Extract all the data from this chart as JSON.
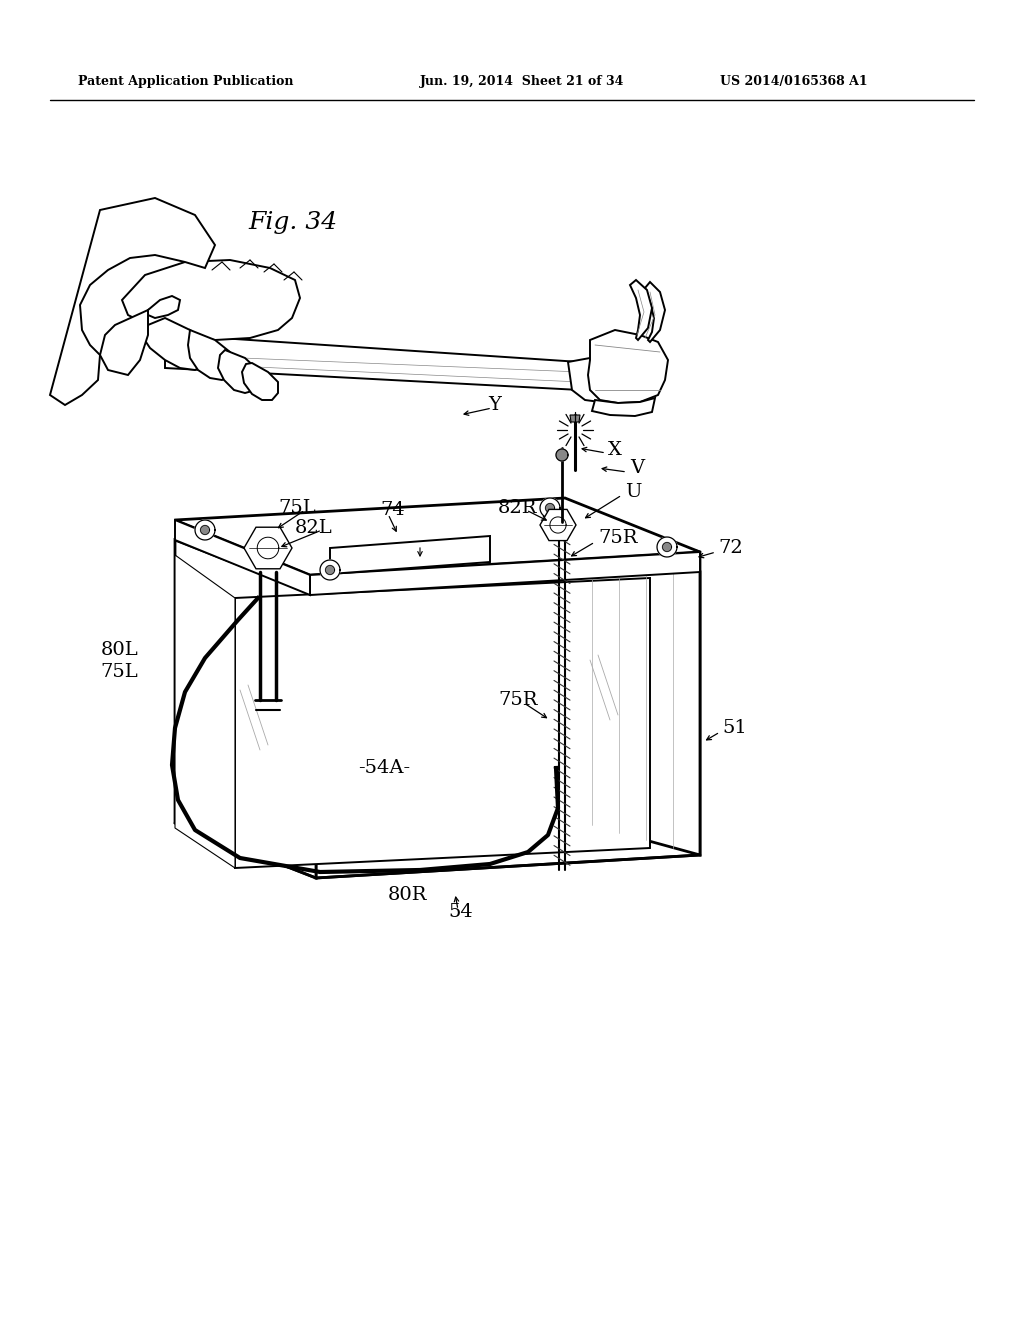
{
  "bg_color": "#ffffff",
  "line_color": "#000000",
  "header_left": "Patent Application Publication",
  "header_mid": "Jun. 19, 2014  Sheet 21 of 34",
  "header_right": "US 2014/0165368 A1",
  "fig_label": "Fig. 34",
  "lw_main": 1.4,
  "lw_thin": 0.8,
  "lw_thick": 2.0
}
